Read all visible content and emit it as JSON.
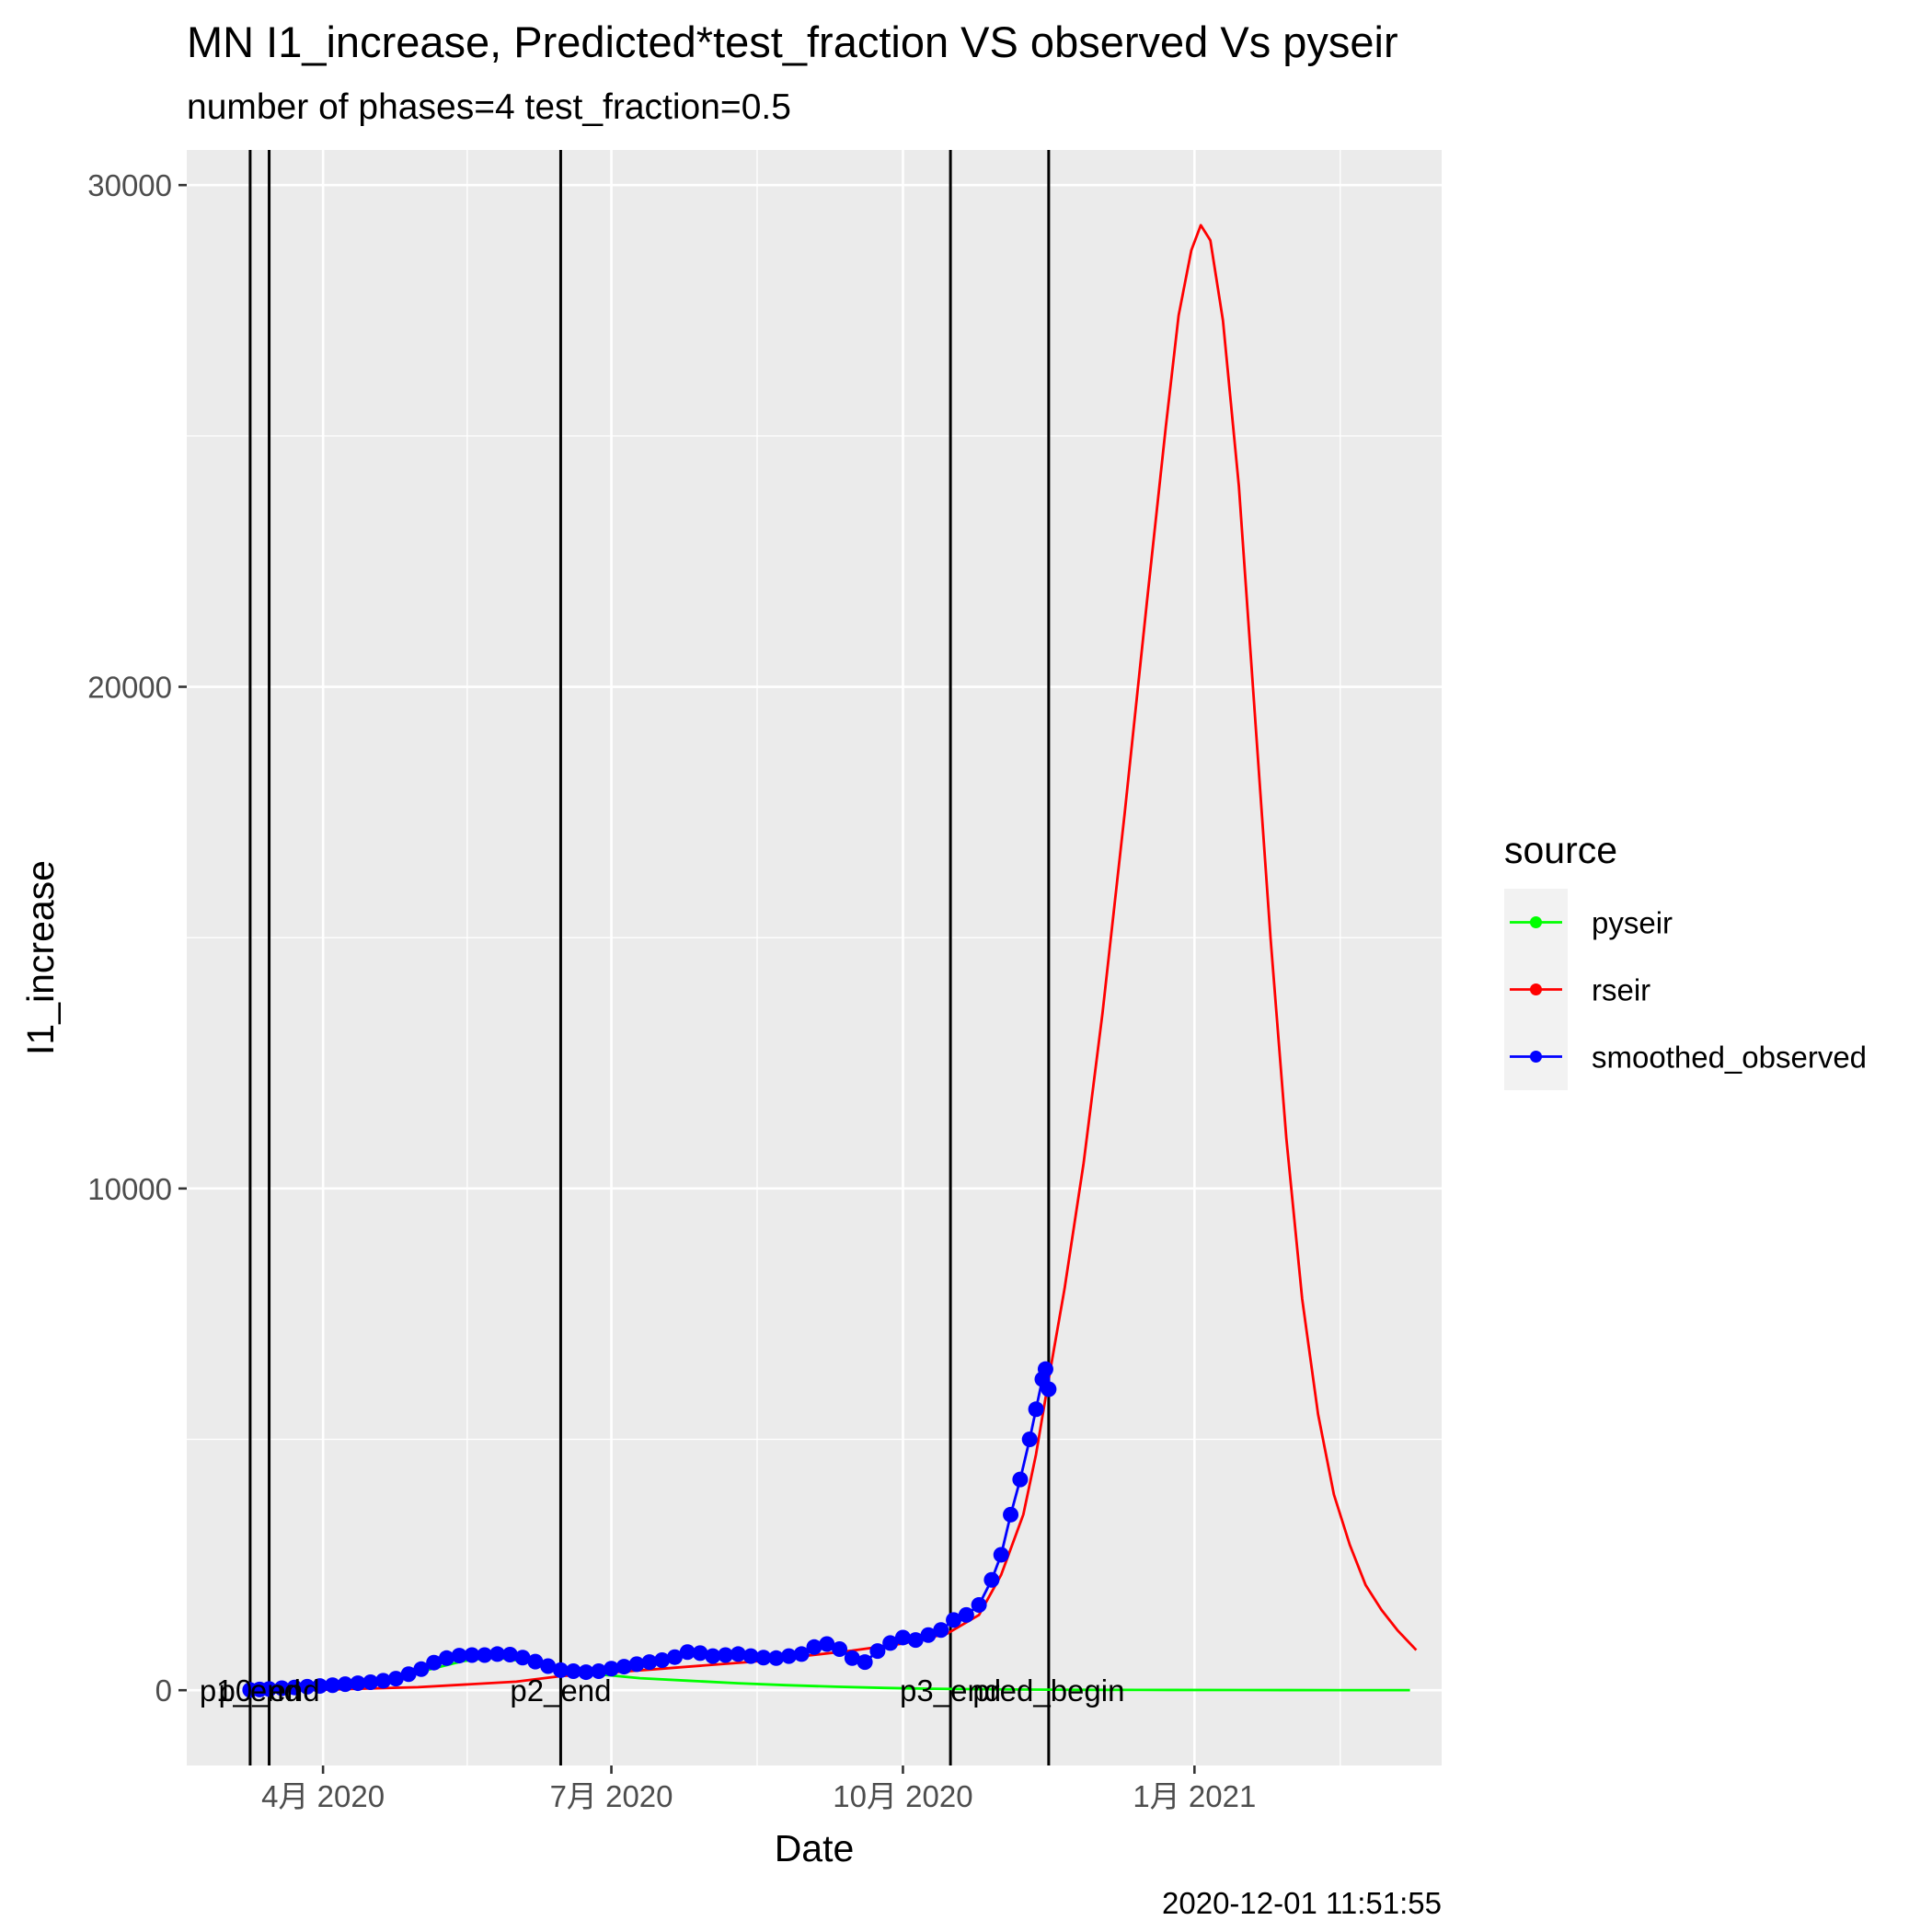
{
  "chart_data": {
    "type": "line",
    "title": "MN I1_increase, Predicted*test_fraction VS observed Vs pyseir",
    "subtitle": "number of phases=4   test_fraction=0.5",
    "xlabel": "Date",
    "ylabel": "I1_increase",
    "caption": "2020-12-01 11:51:55",
    "xlim": [
      "2020-02-18",
      "2021-03-20"
    ],
    "ylim": [
      -1500,
      30700
    ],
    "y_ticks": [
      0,
      10000,
      20000,
      30000
    ],
    "x_ticks": [
      {
        "date": "2020-04-01",
        "label": "4月 2020"
      },
      {
        "date": "2020-07-01",
        "label": "7月 2020"
      },
      {
        "date": "2020-10-01",
        "label": "10月 2020"
      },
      {
        "date": "2021-01-01",
        "label": "1月 2021"
      }
    ],
    "vertical_lines": [
      {
        "date": "2020-03-09",
        "label": "p1_end"
      },
      {
        "date": "2020-03-15",
        "label": "p0_end"
      },
      {
        "date": "2020-06-15",
        "label": "p2_end"
      },
      {
        "date": "2020-10-16",
        "label": "p3_end"
      },
      {
        "date": "2020-11-16",
        "label": "pred_begin"
      }
    ],
    "legend": {
      "title": "source",
      "position": "right"
    },
    "series": [
      {
        "name": "pyseir",
        "color": "#00ff00",
        "style": "line",
        "points": [
          [
            "2020-03-10",
            0
          ],
          [
            "2020-03-25",
            40
          ],
          [
            "2020-04-10",
            120
          ],
          [
            "2020-04-25",
            260
          ],
          [
            "2020-05-05",
            420
          ],
          [
            "2020-05-15",
            580
          ],
          [
            "2020-05-25",
            660
          ],
          [
            "2020-06-05",
            560
          ],
          [
            "2020-06-15",
            420
          ],
          [
            "2020-06-25",
            330
          ],
          [
            "2020-07-10",
            240
          ],
          [
            "2020-07-25",
            190
          ],
          [
            "2020-08-10",
            140
          ],
          [
            "2020-08-25",
            100
          ],
          [
            "2020-09-10",
            70
          ],
          [
            "2020-09-25",
            45
          ],
          [
            "2020-10-10",
            30
          ],
          [
            "2020-10-25",
            20
          ],
          [
            "2020-11-10",
            12
          ],
          [
            "2020-11-25",
            8
          ],
          [
            "2020-12-15",
            5
          ],
          [
            "2021-01-15",
            3
          ],
          [
            "2021-02-15",
            2
          ],
          [
            "2021-03-10",
            1
          ]
        ]
      },
      {
        "name": "rseir",
        "color": "#ff0000",
        "style": "line",
        "points": [
          [
            "2020-03-08",
            0
          ],
          [
            "2020-04-01",
            10
          ],
          [
            "2020-05-01",
            60
          ],
          [
            "2020-06-01",
            170
          ],
          [
            "2020-06-15",
            280
          ],
          [
            "2020-07-15",
            420
          ],
          [
            "2020-08-15",
            570
          ],
          [
            "2020-09-15",
            790
          ],
          [
            "2020-10-01",
            930
          ],
          [
            "2020-10-15",
            1130
          ],
          [
            "2020-10-25",
            1500
          ],
          [
            "2020-11-01",
            2300
          ],
          [
            "2020-11-08",
            3500
          ],
          [
            "2020-11-12",
            4700
          ],
          [
            "2020-11-16",
            6200
          ],
          [
            "2020-11-21",
            8000
          ],
          [
            "2020-11-27",
            10500
          ],
          [
            "2020-12-03",
            13500
          ],
          [
            "2020-12-10",
            17500
          ],
          [
            "2020-12-17",
            21700
          ],
          [
            "2020-12-23",
            25200
          ],
          [
            "2020-12-27",
            27400
          ],
          [
            "2020-12-31",
            28700
          ],
          [
            "2021-01-03",
            29200
          ],
          [
            "2021-01-06",
            28900
          ],
          [
            "2021-01-10",
            27300
          ],
          [
            "2021-01-15",
            24000
          ],
          [
            "2021-01-20",
            19500
          ],
          [
            "2021-01-25",
            15000
          ],
          [
            "2021-01-30",
            11000
          ],
          [
            "2021-02-04",
            7800
          ],
          [
            "2021-02-09",
            5500
          ],
          [
            "2021-02-14",
            3900
          ],
          [
            "2021-02-19",
            2900
          ],
          [
            "2021-02-24",
            2100
          ],
          [
            "2021-03-01",
            1600
          ],
          [
            "2021-03-06",
            1200
          ],
          [
            "2021-03-12",
            800
          ]
        ]
      },
      {
        "name": "smoothed_observed",
        "color": "#0000ff",
        "style": "line+points",
        "points": [
          [
            "2020-03-09",
            5
          ],
          [
            "2020-03-12",
            15
          ],
          [
            "2020-03-15",
            25
          ],
          [
            "2020-03-19",
            40
          ],
          [
            "2020-03-23",
            55
          ],
          [
            "2020-03-27",
            70
          ],
          [
            "2020-03-31",
            85
          ],
          [
            "2020-04-04",
            100
          ],
          [
            "2020-04-08",
            120
          ],
          [
            "2020-04-12",
            140
          ],
          [
            "2020-04-16",
            160
          ],
          [
            "2020-04-20",
            190
          ],
          [
            "2020-04-24",
            230
          ],
          [
            "2020-04-28",
            320
          ],
          [
            "2020-05-02",
            420
          ],
          [
            "2020-05-06",
            550
          ],
          [
            "2020-05-10",
            640
          ],
          [
            "2020-05-14",
            690
          ],
          [
            "2020-05-18",
            700
          ],
          [
            "2020-05-22",
            700
          ],
          [
            "2020-05-26",
            720
          ],
          [
            "2020-05-30",
            710
          ],
          [
            "2020-06-03",
            650
          ],
          [
            "2020-06-07",
            570
          ],
          [
            "2020-06-11",
            480
          ],
          [
            "2020-06-15",
            400
          ],
          [
            "2020-06-19",
            380
          ],
          [
            "2020-06-23",
            360
          ],
          [
            "2020-06-27",
            380
          ],
          [
            "2020-07-01",
            430
          ],
          [
            "2020-07-05",
            470
          ],
          [
            "2020-07-09",
            520
          ],
          [
            "2020-07-13",
            560
          ],
          [
            "2020-07-17",
            600
          ],
          [
            "2020-07-21",
            660
          ],
          [
            "2020-07-25",
            760
          ],
          [
            "2020-07-29",
            740
          ],
          [
            "2020-08-02",
            680
          ],
          [
            "2020-08-06",
            700
          ],
          [
            "2020-08-10",
            720
          ],
          [
            "2020-08-14",
            680
          ],
          [
            "2020-08-18",
            650
          ],
          [
            "2020-08-22",
            640
          ],
          [
            "2020-08-26",
            680
          ],
          [
            "2020-08-30",
            720
          ],
          [
            "2020-09-03",
            860
          ],
          [
            "2020-09-07",
            920
          ],
          [
            "2020-09-11",
            820
          ],
          [
            "2020-09-15",
            640
          ],
          [
            "2020-09-19",
            560
          ],
          [
            "2020-09-23",
            780
          ],
          [
            "2020-09-27",
            940
          ],
          [
            "2020-10-01",
            1050
          ],
          [
            "2020-10-05",
            1000
          ],
          [
            "2020-10-09",
            1100
          ],
          [
            "2020-10-13",
            1200
          ],
          [
            "2020-10-17",
            1400
          ],
          [
            "2020-10-21",
            1500
          ],
          [
            "2020-10-25",
            1700
          ],
          [
            "2020-10-29",
            2200
          ],
          [
            "2020-11-01",
            2700
          ],
          [
            "2020-11-04",
            3500
          ],
          [
            "2020-11-07",
            4200
          ],
          [
            "2020-11-10",
            5000
          ],
          [
            "2020-11-12",
            5600
          ],
          [
            "2020-11-14",
            6200
          ],
          [
            "2020-11-15",
            6400
          ],
          [
            "2020-11-16",
            6000
          ]
        ]
      }
    ]
  }
}
